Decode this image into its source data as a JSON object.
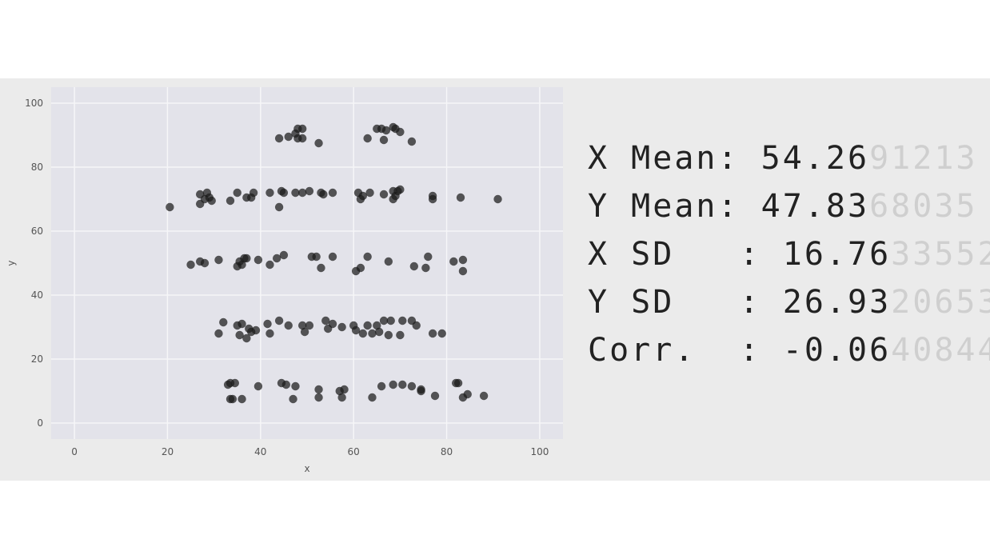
{
  "stats": [
    {
      "label": "X Mean: ",
      "value": "54.26",
      "faded": "91213"
    },
    {
      "label": "Y Mean: ",
      "value": "47.83",
      "faded": "68035"
    },
    {
      "label": "X SD   : ",
      "value": "16.76",
      "faded": "33552"
    },
    {
      "label": "Y SD   : ",
      "value": "26.93",
      "faded": "20653"
    },
    {
      "label": "Corr.  : ",
      "value": "-0.06",
      "faded": "40844"
    }
  ],
  "chart_data": {
    "type": "scatter",
    "xlabel": "x",
    "ylabel": "y",
    "xlim": [
      -5,
      105
    ],
    "ylim": [
      -5,
      105
    ],
    "xticks": [
      0,
      20,
      40,
      60,
      80,
      100
    ],
    "yticks": [
      0,
      20,
      40,
      60,
      80,
      100
    ],
    "grid": true,
    "point_color": "#1a1a1a",
    "plot_bg": "#e3e3ea",
    "grid_color": "#f6f6f8",
    "points": [
      [
        44,
        89
      ],
      [
        46,
        89.5
      ],
      [
        47.5,
        90.5
      ],
      [
        48,
        92
      ],
      [
        49,
        92
      ],
      [
        48,
        89
      ],
      [
        49,
        89
      ],
      [
        52.5,
        87.5
      ],
      [
        63,
        89
      ],
      [
        65,
        92
      ],
      [
        66,
        92
      ],
      [
        66.5,
        88.5
      ],
      [
        67,
        91.5
      ],
      [
        68.5,
        92.5
      ],
      [
        69,
        92
      ],
      [
        70,
        91
      ],
      [
        72.5,
        88
      ],
      [
        20.5,
        67.5
      ],
      [
        27,
        71.5
      ],
      [
        27,
        68.5
      ],
      [
        28,
        70
      ],
      [
        28.5,
        72
      ],
      [
        29,
        70.5
      ],
      [
        29.5,
        69.5
      ],
      [
        33.5,
        69.5
      ],
      [
        35,
        72
      ],
      [
        37,
        70.5
      ],
      [
        38,
        70.5
      ],
      [
        38.5,
        72
      ],
      [
        42,
        72
      ],
      [
        44,
        67.5
      ],
      [
        44.5,
        72.5
      ],
      [
        45,
        72
      ],
      [
        47.5,
        72
      ],
      [
        49,
        72
      ],
      [
        50.5,
        72.5
      ],
      [
        53,
        72
      ],
      [
        53.5,
        71.5
      ],
      [
        55.5,
        72
      ],
      [
        61,
        72
      ],
      [
        61.5,
        70
      ],
      [
        62,
        71
      ],
      [
        63.5,
        72
      ],
      [
        66.5,
        71.5
      ],
      [
        68.5,
        72.5
      ],
      [
        68.5,
        70
      ],
      [
        69,
        71
      ],
      [
        69.5,
        72.5
      ],
      [
        70,
        73
      ],
      [
        77,
        71
      ],
      [
        77,
        70
      ],
      [
        83,
        70.5
      ],
      [
        91,
        70
      ],
      [
        25,
        49.5
      ],
      [
        27,
        50.5
      ],
      [
        28,
        50
      ],
      [
        31,
        51
      ],
      [
        35,
        49
      ],
      [
        35.5,
        50.5
      ],
      [
        36,
        49.5
      ],
      [
        36.5,
        51.5
      ],
      [
        37,
        51.5
      ],
      [
        39.5,
        51
      ],
      [
        42,
        49.5
      ],
      [
        43.5,
        51.5
      ],
      [
        45,
        52.5
      ],
      [
        51,
        52
      ],
      [
        52,
        52
      ],
      [
        53,
        48.5
      ],
      [
        55.5,
        52
      ],
      [
        60.5,
        47.5
      ],
      [
        61.5,
        48.5
      ],
      [
        63,
        52
      ],
      [
        67.5,
        50.5
      ],
      [
        73,
        49
      ],
      [
        75.5,
        48.5
      ],
      [
        76,
        52
      ],
      [
        81.5,
        50.5
      ],
      [
        83.5,
        51
      ],
      [
        83.5,
        47.5
      ],
      [
        31,
        28
      ],
      [
        32,
        31.5
      ],
      [
        35,
        30.5
      ],
      [
        35.5,
        27.5
      ],
      [
        36,
        31
      ],
      [
        37,
        26.5
      ],
      [
        37.5,
        29.5
      ],
      [
        38,
        28.5
      ],
      [
        39,
        29
      ],
      [
        41.5,
        31
      ],
      [
        42,
        28
      ],
      [
        44,
        32
      ],
      [
        46,
        30.5
      ],
      [
        49,
        30.5
      ],
      [
        49.5,
        28.5
      ],
      [
        50.5,
        30.5
      ],
      [
        54,
        32
      ],
      [
        54.5,
        29.5
      ],
      [
        55.5,
        31
      ],
      [
        57.5,
        30
      ],
      [
        60,
        30.5
      ],
      [
        60.5,
        29
      ],
      [
        62,
        28
      ],
      [
        63,
        30.5
      ],
      [
        64,
        28
      ],
      [
        65,
        30.5
      ],
      [
        65.5,
        28.5
      ],
      [
        66.5,
        32
      ],
      [
        67.5,
        27.5
      ],
      [
        68,
        32
      ],
      [
        70,
        27.5
      ],
      [
        70.5,
        32
      ],
      [
        72.5,
        32
      ],
      [
        73.5,
        30.5
      ],
      [
        77,
        28
      ],
      [
        79,
        28
      ],
      [
        33,
        12
      ],
      [
        33.5,
        12.5
      ],
      [
        33.5,
        7.5
      ],
      [
        34,
        7.5
      ],
      [
        34.5,
        12.5
      ],
      [
        36,
        7.5
      ],
      [
        39.5,
        11.5
      ],
      [
        44.5,
        12.5
      ],
      [
        45.5,
        12
      ],
      [
        47,
        7.5
      ],
      [
        47.5,
        11.5
      ],
      [
        52.5,
        10.5
      ],
      [
        52.5,
        8
      ],
      [
        57,
        10
      ],
      [
        57.5,
        8
      ],
      [
        58,
        10.5
      ],
      [
        64,
        8
      ],
      [
        66,
        11.5
      ],
      [
        68.5,
        12
      ],
      [
        70.5,
        12
      ],
      [
        72.5,
        11.5
      ],
      [
        74.5,
        10.5
      ],
      [
        74.5,
        10
      ],
      [
        77.5,
        8.5
      ],
      [
        82,
        12.5
      ],
      [
        82.5,
        12.5
      ],
      [
        83.5,
        8
      ],
      [
        84.5,
        9
      ],
      [
        88,
        8.5
      ]
    ]
  }
}
